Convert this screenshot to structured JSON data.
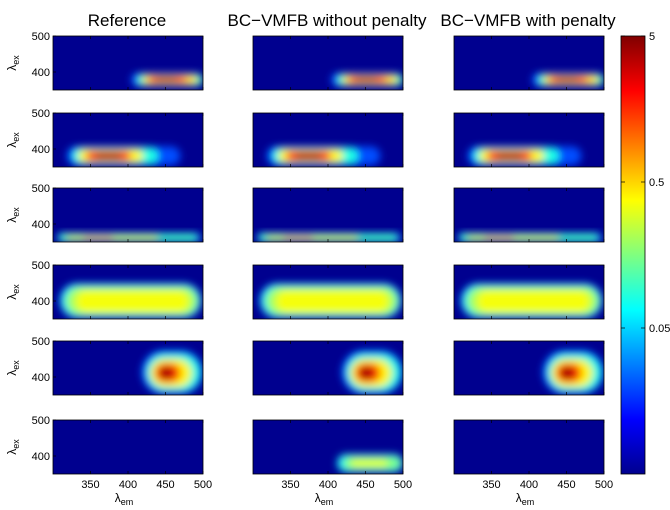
{
  "chart_data": {
    "type": "heatmap",
    "panel_titles": [
      "Reference",
      "BC−VMFB without penalty",
      "BC−VMFB with penalty"
    ],
    "xlabel_main": "λ",
    "xlabel_sub": "em",
    "ylabel_main": "λ",
    "ylabel_sub": "ex",
    "xlim": [
      300,
      500
    ],
    "ylim": [
      350,
      500
    ],
    "xticks": [
      350,
      400,
      450,
      500
    ],
    "yticks": [
      400,
      500
    ],
    "colorbar": {
      "scale": "log",
      "range": [
        0.005,
        5
      ],
      "ticks": [
        5,
        0.5,
        0.05
      ],
      "tick_labels": [
        "5",
        "0.5",
        "0.05"
      ],
      "colormap": "jet"
    },
    "components": [
      {
        "row": 1,
        "peak": {
          "em": 450,
          "ex": 380
        },
        "peak_value": 5,
        "shape": "narrow horizontal band, 400-500 em, 365-395 ex"
      },
      {
        "row": 2,
        "peak": {
          "em": 373,
          "ex": 380
        },
        "peak_value": 5,
        "shape": "ellipse 345-450 em with weak tail to 470, 365-400 ex"
      },
      {
        "row": 3,
        "peak": {
          "em": 360,
          "ex": 362
        },
        "peak_value": 1.5,
        "shape": "thin band along bottom edge, 305-495 em"
      },
      {
        "row": 4,
        "peak": {
          "em": 400,
          "ex": 395
        },
        "peak_value": 0.5,
        "shape": "broad rounded rectangle, 310-495 em, 360-445 ex"
      },
      {
        "row": 5,
        "peak": {
          "em": 450,
          "ex": 410
        },
        "peak_value": 5,
        "shape": "round blob, 420-490 em, 370-460 ex"
      },
      {
        "row": 6,
        "peak": {
          "em": 450,
          "ex": 380
        },
        "peak_value": 0.3,
        "shape": "visible only in BC-VMFB without penalty; empty in Reference and with penalty"
      }
    ],
    "grid": false,
    "legend": "colorbar right"
  }
}
